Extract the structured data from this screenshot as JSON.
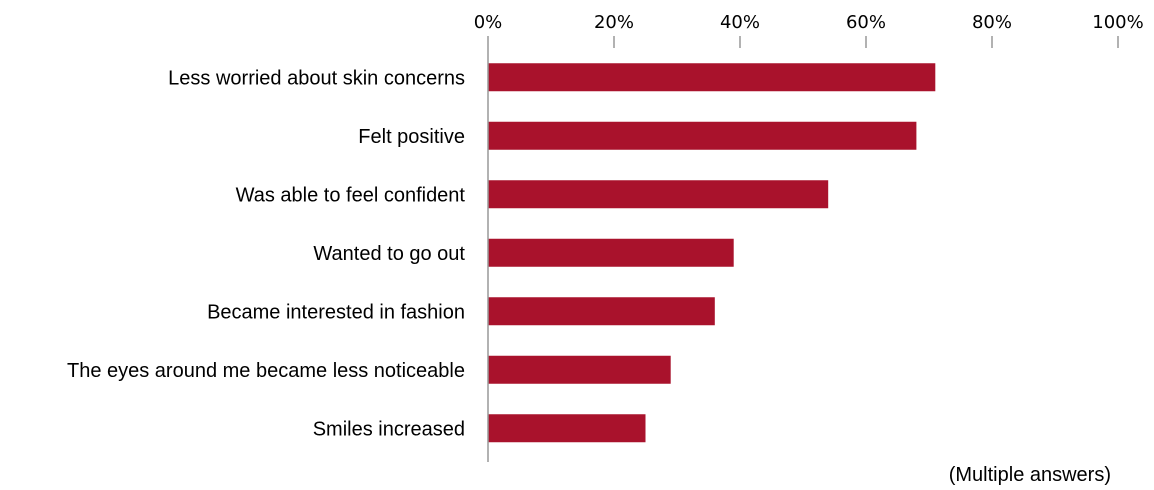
{
  "chart_data": {
    "type": "bar",
    "orientation": "horizontal",
    "categories": [
      "Less worried about skin concerns",
      "Felt positive",
      "Was able to feel confident",
      "Wanted to go out",
      "Became interested in fashion",
      "The eyes around me became less noticeable",
      "Smiles increased"
    ],
    "values": [
      71,
      68,
      54,
      39,
      36,
      29,
      25
    ],
    "xlim": [
      0,
      100
    ],
    "x_ticks": [
      "0%",
      "20%",
      "40%",
      "60%",
      "80%",
      "100%"
    ],
    "x_tick_values": [
      0,
      20,
      40,
      60,
      80,
      100
    ],
    "x_axis_position": "top",
    "grid": false,
    "bar_color": "#A9122C",
    "note": "(Multiple answers)"
  }
}
